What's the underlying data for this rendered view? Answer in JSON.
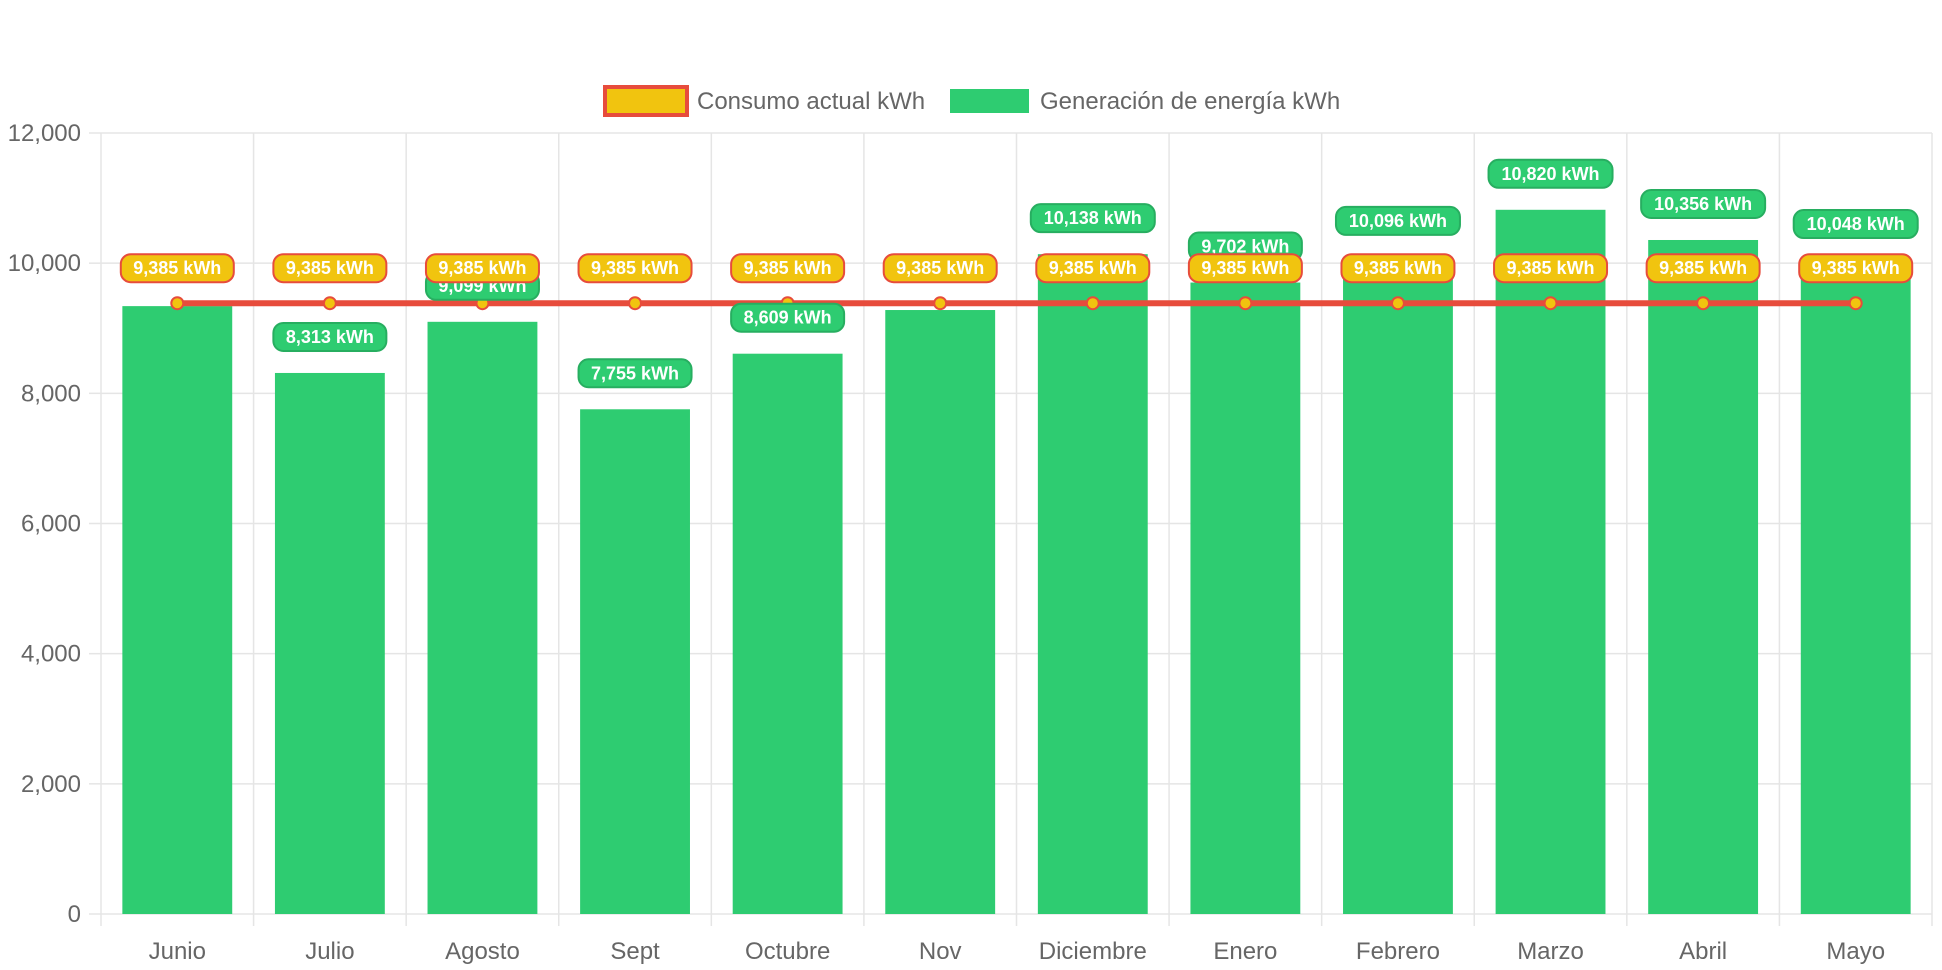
{
  "chart_data": {
    "type": "bar",
    "categories": [
      "Junio",
      "Julio",
      "Agosto",
      "Sept",
      "Octubre",
      "Nov",
      "Diciembre",
      "Enero",
      "Febrero",
      "Marzo",
      "Abril",
      "Mayo"
    ],
    "series": [
      {
        "name": "Generación de energía kWh",
        "type": "bar",
        "color": "#2ecc71",
        "values": [
          9340,
          8313,
          9099,
          7755,
          8609,
          9280,
          10138,
          9702,
          10096,
          10820,
          10356,
          10048
        ],
        "labels": [
          "",
          "8,313 kWh",
          "9,099 kWh",
          "7,755 kWh",
          "8,609 kWh",
          "",
          "10,138 kWh",
          "9,702 kWh",
          "10,096 kWh",
          "10,820 kWh",
          "10,356 kWh",
          "10,048 kWh"
        ]
      },
      {
        "name": "Consumo actual kWh",
        "type": "line",
        "color": "#e74c3c",
        "point_color": "#f1c40f",
        "values": [
          9385,
          9385,
          9385,
          9385,
          9385,
          9385,
          9385,
          9385,
          9385,
          9385,
          9385,
          9385
        ],
        "labels": [
          "9,385 kWh",
          "9,385 kWh",
          "9,385 kWh",
          "9,385 kWh",
          "9,385 kWh",
          "9,385 kWh",
          "9,385 kWh",
          "9,385 kWh",
          "9,385 kWh",
          "9,385 kWh",
          "9,385 kWh",
          "9,385 kWh"
        ]
      }
    ],
    "ylim": [
      0,
      12000
    ],
    "yticks": [
      0,
      2000,
      4000,
      6000,
      8000,
      10000,
      12000
    ],
    "ytick_labels": [
      "0",
      "2,000",
      "4,000",
      "6,000",
      "8,000",
      "10,000",
      "12,000"
    ],
    "grid": true,
    "legend": "top-center",
    "xlabel": "",
    "ylabel": ""
  },
  "legend": {
    "items": [
      {
        "label": "Consumo actual kWh",
        "fill": "#f1c40f",
        "border": "#e74c3c"
      },
      {
        "label": "Generación de energía kWh",
        "fill": "#2ecc71",
        "border": "#2ecc71"
      }
    ]
  }
}
